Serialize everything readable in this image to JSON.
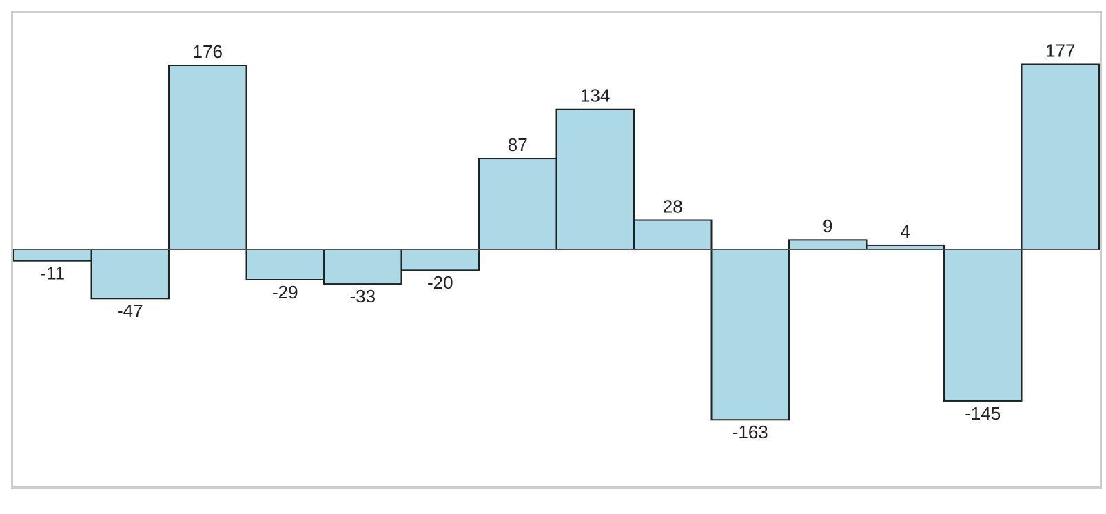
{
  "chart_data": {
    "type": "bar",
    "values": [
      -11,
      -47,
      176,
      -29,
      -33,
      -20,
      87,
      134,
      28,
      -163,
      9,
      4,
      -145,
      177
    ],
    "color": "#add8e6"
  }
}
